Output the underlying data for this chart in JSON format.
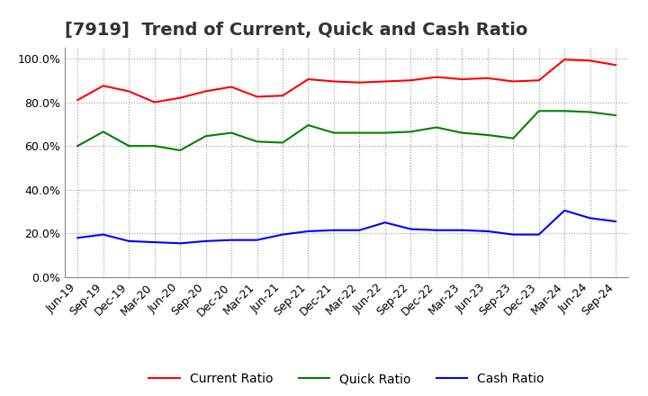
{
  "title": "[7919]  Trend of Current, Quick and Cash Ratio",
  "x_labels": [
    "Jun-19",
    "Sep-19",
    "Dec-19",
    "Mar-20",
    "Jun-20",
    "Sep-20",
    "Dec-20",
    "Mar-21",
    "Jun-21",
    "Sep-21",
    "Dec-21",
    "Mar-22",
    "Jun-22",
    "Sep-22",
    "Dec-22",
    "Mar-23",
    "Jun-23",
    "Sep-23",
    "Dec-23",
    "Mar-24",
    "Jun-24",
    "Sep-24"
  ],
  "current_ratio": [
    0.81,
    0.875,
    0.85,
    0.8,
    0.82,
    0.85,
    0.87,
    0.825,
    0.83,
    0.905,
    0.895,
    0.89,
    0.895,
    0.9,
    0.915,
    0.905,
    0.91,
    0.895,
    0.9,
    0.995,
    0.99,
    0.97
  ],
  "quick_ratio": [
    0.6,
    0.665,
    0.6,
    0.6,
    0.58,
    0.645,
    0.66,
    0.62,
    0.615,
    0.695,
    0.66,
    0.66,
    0.66,
    0.665,
    0.685,
    0.66,
    0.65,
    0.635,
    0.76,
    0.76,
    0.755,
    0.74
  ],
  "cash_ratio": [
    0.18,
    0.195,
    0.165,
    0.16,
    0.155,
    0.165,
    0.17,
    0.17,
    0.195,
    0.21,
    0.215,
    0.215,
    0.25,
    0.22,
    0.215,
    0.215,
    0.21,
    0.195,
    0.195,
    0.305,
    0.27,
    0.255
  ],
  "current_color": "#FF0000",
  "quick_color": "#008000",
  "cash_color": "#0000FF",
  "ylim": [
    0.0,
    1.05
  ],
  "yticks": [
    0.0,
    0.2,
    0.4,
    0.6,
    0.8,
    1.0
  ],
  "background_color": "#ffffff",
  "grid_color": "#999999",
  "title_fontsize": 14,
  "legend_fontsize": 10,
  "tick_fontsize": 9
}
